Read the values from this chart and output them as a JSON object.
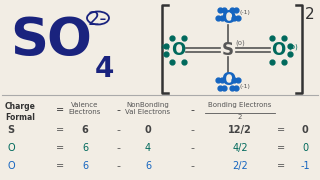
{
  "bg_color": "#f2ede4",
  "dark_blue": "#1a237e",
  "teal": "#00695c",
  "mid_blue": "#1565c0",
  "gray": "#555555",
  "rows": [
    {
      "atom": "S",
      "color": "#444444",
      "v": "6",
      "nb": "0",
      "b": "12/2",
      "result": "0"
    },
    {
      "atom": "O",
      "color": "#00695c",
      "v": "6",
      "nb": "4",
      "b": "4/2",
      "result": "0"
    },
    {
      "atom": "O",
      "color": "#1565c0",
      "v": "6",
      "nb": "6",
      "b": "2/2",
      "result": "-1"
    }
  ]
}
